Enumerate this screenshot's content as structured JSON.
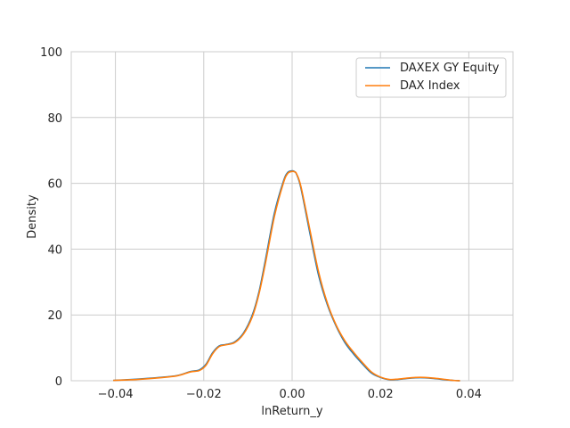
{
  "chart_data": {
    "type": "line",
    "title": "",
    "xlabel": "lnReturn_y",
    "ylabel": "Density",
    "xlim": [
      -0.05,
      0.05
    ],
    "ylim": [
      0,
      100
    ],
    "xticks": [
      -0.04,
      -0.02,
      0.0,
      0.02,
      0.04
    ],
    "xtick_labels": [
      "−0.04",
      "−0.02",
      "0.00",
      "0.02",
      "0.04"
    ],
    "yticks": [
      0,
      20,
      40,
      60,
      80,
      100
    ],
    "ytick_labels": [
      "0",
      "20",
      "40",
      "60",
      "80",
      "100"
    ],
    "grid": true,
    "legend_position": "top-right",
    "series": [
      {
        "name": "DAXEX GY Equity",
        "color": "#1f77b4",
        "x": [
          -0.0405,
          -0.035,
          -0.03,
          -0.026,
          -0.023,
          -0.021,
          -0.0195,
          -0.018,
          -0.0165,
          -0.015,
          -0.013,
          -0.011,
          -0.009,
          -0.0075,
          -0.006,
          -0.004,
          -0.002,
          -0.001,
          0.0,
          0.0005,
          0.001,
          0.002,
          0.004,
          0.006,
          0.008,
          0.01,
          0.012,
          0.014,
          0.016,
          0.018,
          0.02,
          0.022,
          0.024,
          0.026,
          0.028,
          0.03,
          0.032,
          0.034,
          0.0365,
          0.038
        ],
        "y": [
          0.1,
          0.5,
          1.0,
          1.6,
          2.8,
          3.3,
          5.0,
          8.5,
          10.6,
          11.0,
          11.8,
          14.5,
          20.0,
          27.0,
          37.0,
          51.0,
          60.5,
          63.3,
          63.8,
          63.6,
          62.8,
          58.5,
          45.0,
          32.0,
          23.0,
          16.5,
          11.5,
          8.0,
          5.0,
          2.3,
          1.0,
          0.3,
          0.4,
          0.7,
          0.9,
          0.9,
          0.7,
          0.4,
          0.1,
          0.0
        ]
      },
      {
        "name": "DAX Index",
        "color": "#ff7f0e",
        "x": [
          -0.0405,
          -0.035,
          -0.03,
          -0.026,
          -0.023,
          -0.021,
          -0.0195,
          -0.018,
          -0.0165,
          -0.015,
          -0.013,
          -0.011,
          -0.009,
          -0.0075,
          -0.006,
          -0.004,
          -0.002,
          -0.001,
          0.0,
          0.0005,
          0.001,
          0.002,
          0.004,
          0.006,
          0.008,
          0.01,
          0.012,
          0.014,
          0.016,
          0.018,
          0.02,
          0.022,
          0.024,
          0.026,
          0.028,
          0.03,
          0.032,
          0.034,
          0.0365,
          0.038
        ],
        "y": [
          0.1,
          0.4,
          0.9,
          1.5,
          2.7,
          3.1,
          4.7,
          8.2,
          10.4,
          10.9,
          11.6,
          14.2,
          19.5,
          26.4,
          36.0,
          50.0,
          60.0,
          63.0,
          63.6,
          63.5,
          62.9,
          59.0,
          46.0,
          33.0,
          23.5,
          16.8,
          12.0,
          8.5,
          5.4,
          2.6,
          1.1,
          0.4,
          0.5,
          0.8,
          1.0,
          1.0,
          0.8,
          0.5,
          0.1,
          0.0
        ]
      }
    ]
  }
}
